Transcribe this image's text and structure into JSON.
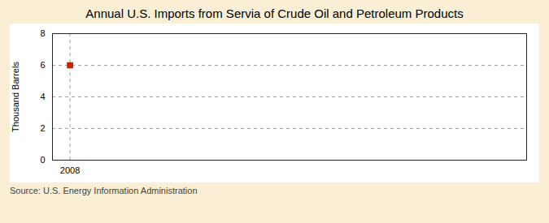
{
  "chart_data": {
    "type": "scatter",
    "title": "Annual U.S. Imports from Servia of Crude Oil and Petroleum Products",
    "ylabel": "Thousand Barrels",
    "caption": "Source: U.S. Energy Information Administration",
    "x": [
      2008
    ],
    "values": [
      6
    ],
    "color": "#cc2200",
    "marker": "square",
    "xlim": [
      2007.5,
      2021
    ],
    "xticks": [
      2008
    ],
    "ylim": [
      0,
      8
    ],
    "yticks": [
      0,
      2,
      4,
      6,
      8
    ],
    "grid": true
  }
}
